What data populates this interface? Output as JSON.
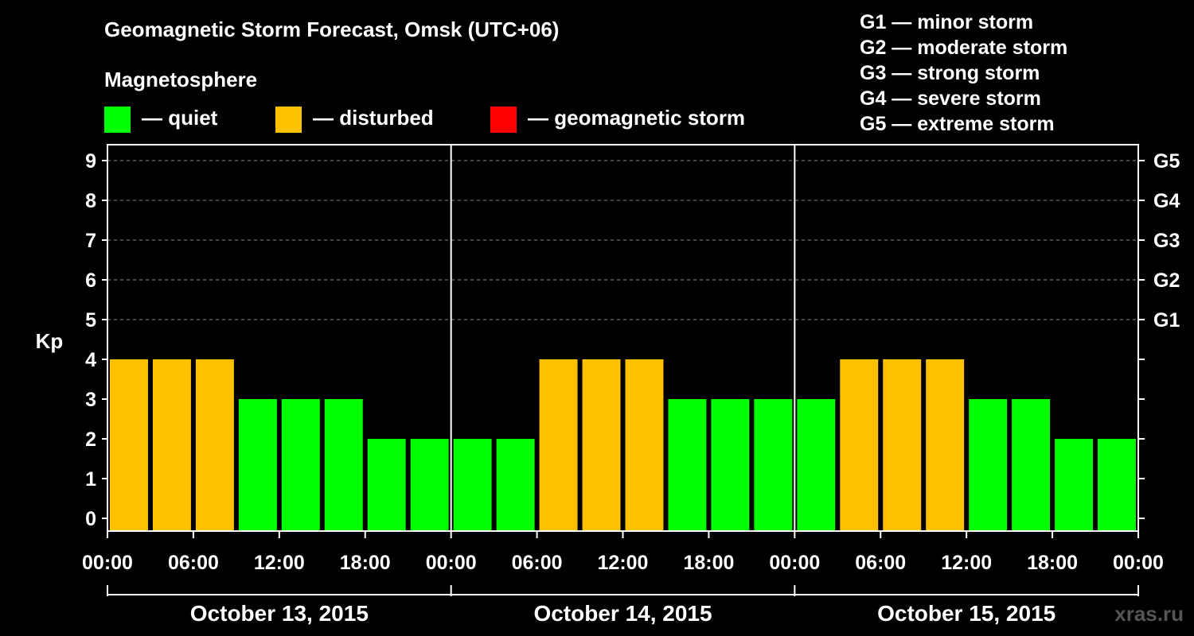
{
  "chart_data": {
    "type": "bar",
    "title": "Geomagnetic Storm Forecast, Omsk (UTC+06)",
    "subtitle": "Magnetosphere",
    "ylabel": "Kp",
    "ylim": [
      0,
      9
    ],
    "y_ticks": [
      "0",
      "1",
      "2",
      "3",
      "4",
      "5",
      "6",
      "7",
      "8",
      "9"
    ],
    "storm_levels": [
      {
        "kp": 5,
        "label": "G1"
      },
      {
        "kp": 6,
        "label": "G2"
      },
      {
        "kp": 7,
        "label": "G3"
      },
      {
        "kp": 8,
        "label": "G4"
      },
      {
        "kp": 9,
        "label": "G5"
      }
    ],
    "legend": [
      {
        "label": "— quiet",
        "color": "#00ff00"
      },
      {
        "label": "— disturbed",
        "color": "#ffc000"
      },
      {
        "label": "— geomagnetic storm",
        "color": "#ff0000"
      }
    ],
    "g_scale": [
      "G1 — minor storm",
      "G2 — moderate storm",
      "G3 — strong storm",
      "G4 — severe storm",
      "G5 — extreme storm"
    ],
    "x_tick_labels": [
      "00:00",
      "06:00",
      "12:00",
      "18:00",
      "00:00",
      "06:00",
      "12:00",
      "18:00",
      "00:00",
      "06:00",
      "12:00",
      "18:00",
      "00:00"
    ],
    "days": [
      "October 13, 2015",
      "October 14, 2015",
      "October 15, 2015"
    ],
    "values": [
      4,
      4,
      4,
      3,
      3,
      3,
      2,
      2,
      2,
      2,
      4,
      4,
      4,
      3,
      3,
      3,
      3,
      4,
      4,
      4,
      3,
      3,
      2,
      2
    ],
    "bar_hours": 3,
    "hours_per_day": 24,
    "colors": {
      "quiet": "#00ff00",
      "disturbed": "#ffc000",
      "storm": "#ff0000",
      "background": "#000000",
      "grid": "#888888"
    }
  },
  "watermark": "xras.ru"
}
